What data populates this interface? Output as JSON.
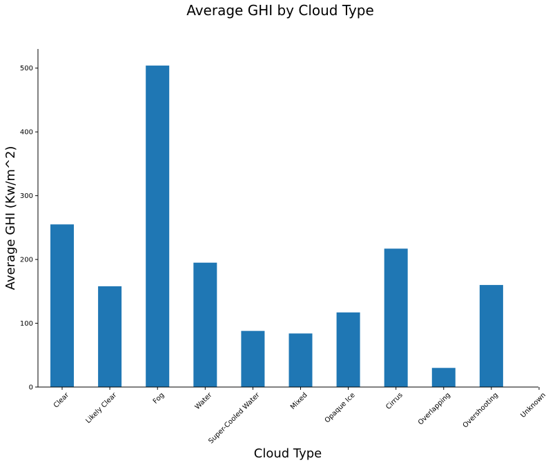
{
  "chart_data": {
    "type": "bar",
    "title": "Average GHI by Cloud Type",
    "xlabel": "Cloud Type",
    "ylabel": "Average GHI (Kw/m^2)",
    "categories": [
      "Clear",
      "Likely Clear",
      "Fog",
      "Water",
      "Super-Cooled Water",
      "Mixed",
      "Opaque Ice",
      "Cirrus",
      "Overlapping",
      "Overshooting",
      "Unknown"
    ],
    "values": [
      255,
      158,
      504,
      195,
      88,
      84,
      117,
      217,
      30,
      160,
      0
    ],
    "ylim": [
      0,
      530
    ],
    "yticks": [
      0,
      100,
      200,
      300,
      400,
      500
    ],
    "grid": false,
    "bar_color": "#1f77b4"
  }
}
